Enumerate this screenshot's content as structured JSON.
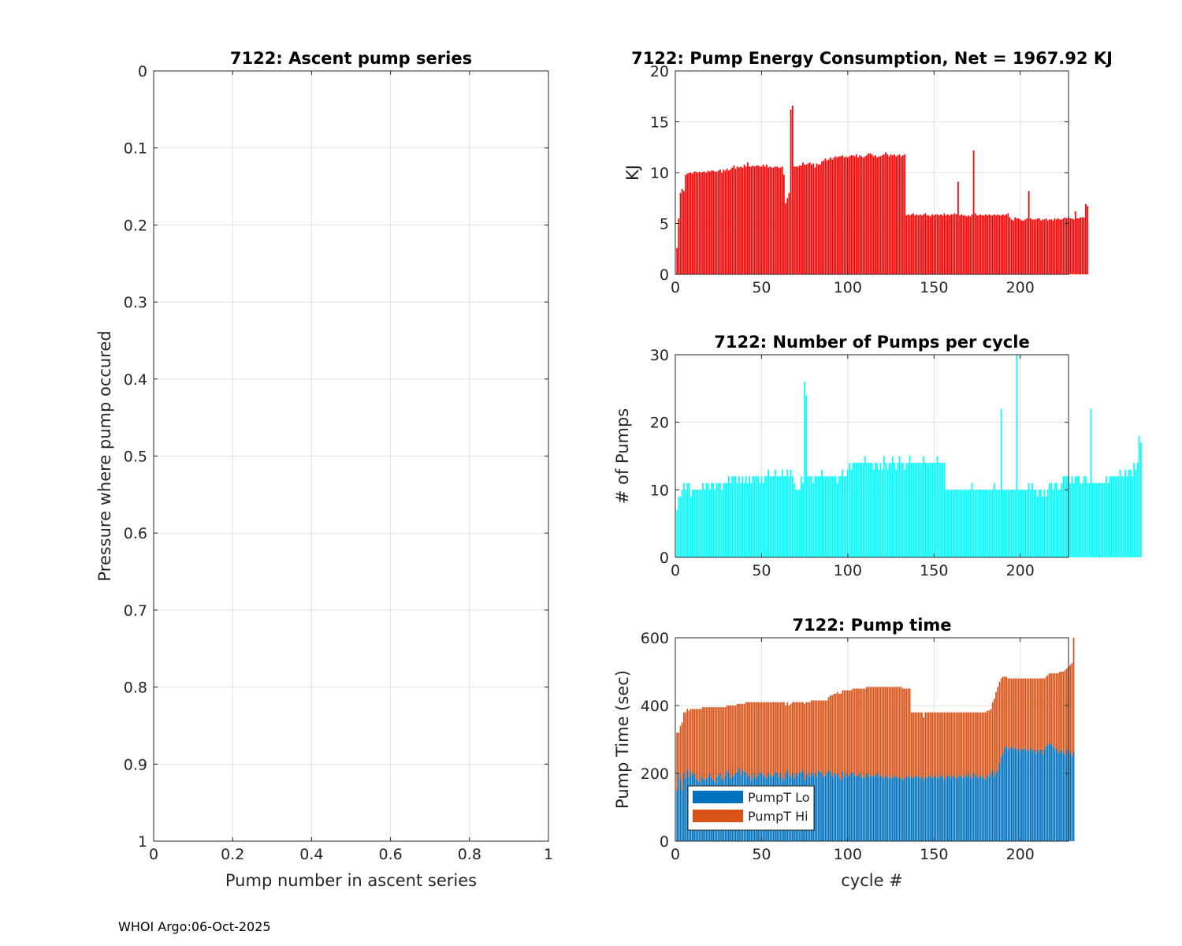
{
  "footer": "WHOI Argo:06-Oct-2025",
  "colors": {
    "energy": "#ff0000",
    "pumps": "#00ffff",
    "lo": "#0072bd",
    "hi": "#d95319",
    "grid": "#e0e0e0",
    "axis": "#262626"
  },
  "chart_data": [
    {
      "id": "ascent",
      "type": "scatter",
      "title": "7122: Ascent pump series",
      "xlabel": "Pump number in ascent series",
      "ylabel": "Pressure where pump occured",
      "xlim": [
        0,
        1
      ],
      "ylim": [
        0,
        1
      ],
      "yreverse": true,
      "xticks": [
        0,
        0.2,
        0.4,
        0.6,
        0.8,
        1
      ],
      "xticklabels": [
        "0",
        "0.2",
        "0.4",
        "0.6",
        "0.8",
        "1"
      ],
      "yticks": [
        0,
        0.1,
        0.2,
        0.3,
        0.4,
        0.5,
        0.6,
        0.7,
        0.8,
        0.9,
        1
      ],
      "yticklabels": [
        "0",
        "0.1",
        "0.2",
        "0.3",
        "0.4",
        "0.5",
        "0.6",
        "0.7",
        "0.8",
        "0.9",
        "1"
      ],
      "grid": true,
      "points": []
    },
    {
      "id": "energy",
      "type": "bar",
      "title": "7122: Pump Energy Consumption,  Net = 1967.92 KJ",
      "xlabel": "",
      "ylabel": "KJ",
      "xlim": [
        0,
        228
      ],
      "ylim": [
        0,
        20
      ],
      "xticks": [
        0,
        50,
        100,
        150,
        200
      ],
      "xticklabels": [
        "0",
        "50",
        "100",
        "150",
        "200"
      ],
      "yticks": [
        0,
        5,
        10,
        15,
        20
      ],
      "yticklabels": [
        "0",
        "5",
        "10",
        "15",
        "20"
      ],
      "grid": true,
      "values": [
        2.6,
        5.5,
        8.0,
        8.4,
        8.2,
        9.8,
        9.9,
        10.0,
        10.0,
        9.9,
        10.1,
        10.1,
        10.0,
        10.1,
        10.0,
        10.1,
        10.1,
        10.0,
        10.2,
        10.1,
        10.2,
        10.2,
        10.1,
        10.1,
        10.2,
        10.3,
        10.0,
        10.3,
        10.2,
        10.4,
        10.2,
        10.3,
        10.5,
        10.7,
        10.4,
        10.6,
        10.5,
        10.6,
        10.5,
        10.8,
        10.6,
        11.0,
        10.6,
        10.6,
        10.7,
        10.6,
        10.7,
        10.7,
        10.6,
        10.6,
        10.8,
        10.6,
        10.8,
        10.5,
        10.6,
        10.5,
        10.5,
        10.6,
        10.6,
        10.5,
        10.5,
        10.6,
        9.8,
        7.0,
        7.5,
        8.0,
        16.2,
        16.6,
        10.6,
        10.6,
        10.6,
        10.7,
        10.7,
        11.0,
        10.8,
        10.8,
        10.9,
        11.0,
        10.8,
        10.9,
        10.5,
        10.9,
        10.8,
        10.8,
        11.1,
        11.2,
        11.4,
        11.2,
        11.3,
        11.5,
        11.3,
        11.5,
        11.6,
        11.5,
        11.6,
        11.6,
        11.7,
        11.5,
        11.6,
        11.5,
        11.6,
        11.7,
        11.7,
        11.6,
        11.8,
        11.5,
        11.7,
        11.6,
        11.5,
        11.6,
        11.7,
        11.9,
        11.9,
        11.8,
        11.6,
        11.7,
        11.5,
        11.6,
        11.6,
        11.7,
        11.8,
        12.0,
        11.8,
        11.6,
        11.8,
        11.7,
        11.8,
        11.6,
        11.7,
        11.8,
        11.6,
        11.7,
        11.8,
        5.8,
        5.9,
        5.8,
        5.9,
        6.0,
        5.8,
        5.9,
        5.8,
        5.9,
        5.8,
        5.9,
        6.0,
        5.8,
        5.8,
        5.7,
        5.9,
        5.8,
        5.9,
        5.9,
        5.8,
        5.9,
        5.8,
        6.0,
        5.8,
        5.9,
        5.8,
        5.9,
        5.9,
        6.0,
        5.9,
        9.1,
        5.8,
        5.9,
        5.8,
        5.8,
        5.7,
        5.8,
        5.7,
        5.9,
        12.2,
        6.0,
        5.8,
        5.8,
        5.9,
        5.8,
        5.8,
        5.9,
        5.8,
        5.9,
        5.8,
        5.8,
        5.9,
        5.8,
        5.9,
        5.8,
        5.8,
        5.9,
        5.8,
        5.9,
        6.0,
        5.6,
        5.4,
        5.3,
        5.6,
        5.5,
        5.5,
        5.4,
        5.3,
        5.3,
        5.4,
        5.5,
        8.2,
        5.5,
        5.4,
        5.4,
        5.4,
        5.5,
        5.5,
        5.3,
        5.4,
        5.4,
        5.5,
        5.3,
        5.4,
        5.4,
        5.3,
        5.5,
        5.4,
        5.5,
        5.4,
        5.4,
        5.5,
        5.6,
        5.5,
        5.6,
        5.5,
        5.5,
        5.4,
        6.2,
        5.5,
        5.5,
        5.6,
        5.6,
        5.6,
        6.9,
        6.7
      ]
    },
    {
      "id": "pumps",
      "type": "bar",
      "title": "7122: Number of Pumps per cycle",
      "xlabel": "",
      "ylabel": "# of Pumps",
      "xlim": [
        0,
        228
      ],
      "ylim": [
        0,
        30
      ],
      "xticks": [
        0,
        50,
        100,
        150,
        200
      ],
      "xticklabels": [
        "0",
        "50",
        "100",
        "150",
        "200"
      ],
      "yticks": [
        0,
        10,
        20,
        30
      ],
      "yticklabels": [
        "0",
        "10",
        "20",
        "30"
      ],
      "grid": true,
      "values": [
        7,
        9,
        9,
        10,
        11,
        10,
        11,
        11,
        9,
        10,
        10,
        10,
        10,
        10,
        10,
        11,
        10,
        11,
        11,
        10,
        11,
        11,
        10,
        11,
        11,
        11,
        10,
        11,
        11,
        11,
        12,
        11,
        12,
        12,
        12,
        11,
        12,
        11,
        12,
        11,
        12,
        11,
        12,
        11,
        12,
        12,
        12,
        12,
        11,
        12,
        11,
        12,
        12,
        13,
        12,
        12,
        12,
        13,
        12,
        12,
        12,
        13,
        12,
        12,
        13,
        12,
        13,
        12,
        11,
        10,
        10,
        10,
        12,
        11,
        26,
        24,
        12,
        12,
        12,
        11,
        12,
        12,
        12,
        12,
        13,
        12,
        12,
        12,
        12,
        12,
        12,
        12,
        12,
        11,
        12,
        12,
        13,
        12,
        12,
        13,
        14,
        13,
        14,
        14,
        14,
        14,
        14,
        14,
        14,
        15,
        14,
        14,
        14,
        14,
        13,
        14,
        14,
        13,
        14,
        13,
        15,
        14,
        13,
        14,
        14,
        15,
        14,
        13,
        14,
        15,
        14,
        14,
        13,
        14,
        14,
        15,
        14,
        14,
        14,
        14,
        14,
        14,
        14,
        15,
        14,
        14,
        14,
        14,
        14,
        14,
        14,
        15,
        14,
        14,
        14,
        14,
        10,
        10,
        10,
        10,
        10,
        10,
        10,
        10,
        10,
        10,
        10,
        10,
        10,
        10,
        10,
        11,
        10,
        10,
        10,
        10,
        10,
        10,
        10,
        10,
        10,
        10,
        10,
        10,
        11,
        10,
        10,
        10,
        22,
        10,
        10,
        10,
        10,
        10,
        10,
        10,
        10,
        30,
        10,
        10,
        10,
        10,
        10,
        10,
        11,
        10,
        11,
        10,
        10,
        9,
        10,
        10,
        9,
        10,
        9,
        10,
        11,
        11,
        10,
        11,
        11,
        10,
        10,
        11,
        12,
        12,
        12,
        12,
        11,
        12,
        11,
        12,
        12,
        12,
        11,
        11,
        12,
        12,
        11,
        11,
        22,
        11,
        11,
        11,
        11,
        11,
        11,
        11,
        11,
        12,
        11,
        12,
        12,
        12,
        12,
        12,
        12,
        13,
        12,
        12,
        13,
        12,
        13,
        13,
        12,
        14,
        13,
        14,
        18,
        17
      ]
    },
    {
      "id": "pumptime",
      "type": "bar",
      "stacked": true,
      "title": "7122: Pump time",
      "xlabel": "cycle #",
      "ylabel": "Pump Time (sec)",
      "xlim": [
        0,
        228
      ],
      "ylim": [
        0,
        600
      ],
      "xticks": [
        0,
        50,
        100,
        150,
        200
      ],
      "xticklabels": [
        "0",
        "50",
        "100",
        "150",
        "200"
      ],
      "yticks": [
        0,
        200,
        400,
        600
      ],
      "yticklabels": [
        "0",
        "200",
        "400",
        "600"
      ],
      "grid": true,
      "legend": {
        "position": "bottom-left",
        "entries": [
          "PumpT Lo",
          "PumpT Hi"
        ]
      },
      "series": [
        {
          "name": "PumpT Lo",
          "values": [
            150,
            200,
            180,
            150,
            200,
            185,
            210,
            190,
            205,
            195,
            200,
            185,
            180,
            175,
            190,
            185,
            180,
            185,
            190,
            200,
            185,
            180,
            175,
            190,
            195,
            200,
            185,
            180,
            195,
            210,
            200,
            185,
            190,
            195,
            200,
            205,
            215,
            195,
            210,
            205,
            200,
            190,
            195,
            180,
            200,
            190,
            185,
            195,
            205,
            200,
            195,
            190,
            185,
            200,
            195,
            190,
            195,
            205,
            200,
            190,
            200,
            185,
            180,
            200,
            210,
            195,
            190,
            200,
            185,
            200,
            195,
            205,
            200,
            210,
            180,
            195,
            200,
            190,
            205,
            195,
            200,
            190,
            210,
            205,
            200,
            190,
            195,
            200,
            210,
            205,
            190,
            200,
            195,
            200,
            190,
            180,
            205,
            190,
            200,
            190,
            195,
            200,
            205,
            195,
            190,
            195,
            200,
            190,
            185,
            190,
            200,
            195,
            190,
            195,
            190,
            195,
            200,
            190,
            195,
            190,
            185,
            195,
            190,
            185,
            190,
            185,
            195,
            190,
            185,
            190,
            185,
            180,
            185,
            190,
            195,
            185,
            190,
            185,
            190,
            195,
            190,
            185,
            190,
            180,
            190,
            185,
            195,
            190,
            185,
            195,
            190,
            185,
            190,
            195,
            190,
            180,
            190,
            195,
            190,
            185,
            195,
            190,
            185,
            190,
            195,
            190,
            185,
            195,
            190,
            200,
            190,
            185,
            200,
            195,
            190,
            185,
            195,
            190,
            185,
            180,
            195,
            190,
            200,
            210,
            190,
            200,
            210,
            230,
            250,
            260,
            275,
            280,
            270,
            275,
            280,
            270,
            275,
            270,
            275,
            265,
            270,
            275,
            270,
            265,
            270,
            275,
            265,
            270,
            260,
            270,
            265,
            270,
            255,
            270,
            280,
            285,
            290,
            285,
            280,
            270,
            275,
            260,
            265,
            270,
            260,
            255,
            270,
            265,
            260,
            250,
            265
          ]
        },
        {
          "name": "PumpT Hi",
          "values": [
            170,
            120,
            160,
            200,
            180,
            195,
            180,
            195,
            185,
            195,
            190,
            205,
            210,
            215,
            200,
            210,
            215,
            210,
            205,
            195,
            210,
            215,
            220,
            205,
            200,
            195,
            210,
            215,
            200,
            190,
            200,
            215,
            210,
            205,
            200,
            200,
            190,
            210,
            195,
            200,
            210,
            220,
            215,
            230,
            210,
            220,
            225,
            215,
            205,
            210,
            215,
            220,
            225,
            210,
            215,
            220,
            215,
            205,
            210,
            220,
            210,
            225,
            230,
            200,
            200,
            205,
            215,
            210,
            225,
            210,
            215,
            205,
            210,
            200,
            225,
            215,
            210,
            220,
            210,
            220,
            215,
            225,
            205,
            210,
            215,
            225,
            220,
            215,
            215,
            225,
            240,
            235,
            240,
            240,
            245,
            255,
            240,
            255,
            245,
            255,
            250,
            245,
            245,
            255,
            260,
            255,
            250,
            260,
            265,
            260,
            255,
            260,
            265,
            260,
            265,
            260,
            255,
            265,
            260,
            265,
            270,
            260,
            265,
            270,
            265,
            270,
            260,
            265,
            270,
            265,
            270,
            270,
            265,
            260,
            255,
            265,
            190,
            195,
            190,
            185,
            190,
            195,
            190,
            185,
            190,
            195,
            185,
            190,
            195,
            185,
            190,
            195,
            190,
            185,
            190,
            200,
            190,
            185,
            190,
            195,
            185,
            190,
            195,
            190,
            185,
            190,
            195,
            185,
            190,
            180,
            190,
            195,
            180,
            185,
            190,
            195,
            185,
            190,
            195,
            200,
            190,
            195,
            190,
            200,
            230,
            240,
            245,
            240,
            230,
            225,
            210,
            205,
            210,
            205,
            200,
            210,
            205,
            210,
            205,
            215,
            210,
            205,
            210,
            215,
            210,
            205,
            215,
            210,
            220,
            210,
            215,
            210,
            225,
            210,
            205,
            205,
            205,
            210,
            215,
            225,
            220,
            235,
            235,
            230,
            240,
            250,
            240,
            250,
            260,
            275,
            335
          ]
        }
      ]
    }
  ]
}
